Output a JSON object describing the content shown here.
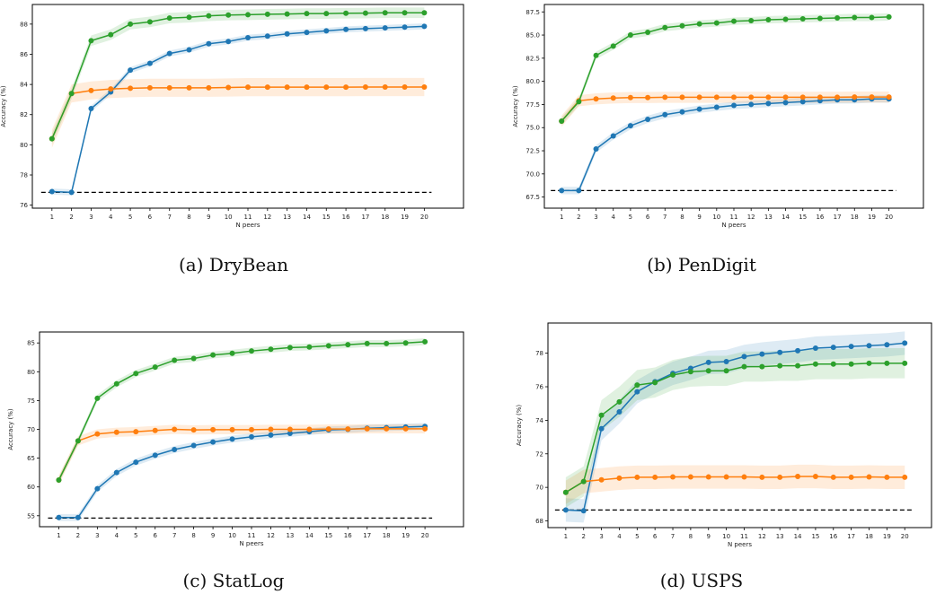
{
  "figure": {
    "captions": [
      "(a)  DryBean",
      "(b)  PenDigit",
      "(c)  StatLog",
      "(d)  USPS"
    ]
  },
  "chart_data": [
    {
      "type": "line",
      "dataset": "DryBean",
      "xlabel": "N peers",
      "ylabel": "Accuracy (%)",
      "xlim": [
        0.0,
        22.0
      ],
      "ylim": [
        75.8,
        89.3
      ],
      "x": [
        1,
        2,
        3,
        4,
        5,
        6,
        7,
        8,
        9,
        10,
        11,
        12,
        13,
        14,
        15,
        16,
        17,
        18,
        19,
        20
      ],
      "xticks": [
        "1",
        "2",
        "3",
        "4",
        "5",
        "6",
        "7",
        "8",
        "9",
        "10",
        "11",
        "12",
        "13",
        "14",
        "15",
        "16",
        "17",
        "18",
        "19",
        "20"
      ],
      "yticks": [
        "76",
        "78",
        "80",
        "82",
        "84",
        "86",
        "88"
      ],
      "ytick_values": [
        76,
        78,
        80,
        82,
        84,
        86,
        88
      ],
      "baseline": 76.85,
      "grid": false,
      "series": [
        {
          "color": "#1f77b4",
          "values": [
            76.9,
            76.85,
            82.4,
            83.5,
            84.95,
            85.4,
            86.05,
            86.3,
            86.7,
            86.85,
            87.1,
            87.2,
            87.35,
            87.45,
            87.55,
            87.65,
            87.7,
            87.75,
            87.8,
            87.85
          ],
          "band": 0.2
        },
        {
          "color": "#ff7f0e",
          "values": [
            80.4,
            83.4,
            83.6,
            83.7,
            83.75,
            83.78,
            83.78,
            83.78,
            83.78,
            83.8,
            83.82,
            83.82,
            83.82,
            83.82,
            83.82,
            83.82,
            83.83,
            83.83,
            83.83,
            83.83
          ],
          "band": 0.6
        },
        {
          "color": "#2ca02c",
          "values": [
            80.4,
            83.4,
            86.9,
            87.3,
            88.0,
            88.15,
            88.4,
            88.45,
            88.55,
            88.6,
            88.62,
            88.65,
            88.67,
            88.7,
            88.7,
            88.72,
            88.73,
            88.75,
            88.75,
            88.75
          ],
          "band": 0.35
        }
      ]
    },
    {
      "type": "line",
      "dataset": "PenDigit",
      "xlabel": "N peers",
      "ylabel": "Accuracy (%)",
      "xlim": [
        0.0,
        22.0
      ],
      "ylim": [
        66.3,
        88.3
      ],
      "x": [
        1,
        2,
        3,
        4,
        5,
        6,
        7,
        8,
        9,
        10,
        11,
        12,
        13,
        14,
        15,
        16,
        17,
        18,
        19,
        20
      ],
      "xticks": [
        "1",
        "2",
        "3",
        "4",
        "5",
        "6",
        "7",
        "8",
        "9",
        "10",
        "11",
        "12",
        "13",
        "14",
        "15",
        "16",
        "17",
        "18",
        "19",
        "20"
      ],
      "yticks": [
        "67.5",
        "70.0",
        "72.5",
        "75.0",
        "77.5",
        "80.0",
        "82.5",
        "85.0",
        "87.5"
      ],
      "ytick_values": [
        67.5,
        70.0,
        72.5,
        75.0,
        77.5,
        80.0,
        82.5,
        85.0,
        87.5
      ],
      "baseline": 68.2,
      "grid": false,
      "series": [
        {
          "color": "#1f77b4",
          "values": [
            68.2,
            68.2,
            72.7,
            74.1,
            75.2,
            75.9,
            76.4,
            76.7,
            77.0,
            77.2,
            77.4,
            77.5,
            77.6,
            77.7,
            77.8,
            77.9,
            78.0,
            78.0,
            78.1,
            78.1
          ],
          "band": 0.4
        },
        {
          "color": "#ff7f0e",
          "values": [
            75.7,
            77.9,
            78.1,
            78.2,
            78.25,
            78.25,
            78.28,
            78.28,
            78.28,
            78.28,
            78.28,
            78.28,
            78.28,
            78.28,
            78.28,
            78.28,
            78.28,
            78.3,
            78.3,
            78.3
          ],
          "band": 0.6
        },
        {
          "color": "#2ca02c",
          "values": [
            75.7,
            77.8,
            82.8,
            83.8,
            85.0,
            85.3,
            85.8,
            86.0,
            86.2,
            86.3,
            86.5,
            86.55,
            86.65,
            86.7,
            86.75,
            86.8,
            86.85,
            86.9,
            86.9,
            86.95
          ],
          "band": 0.4
        }
      ]
    },
    {
      "type": "line",
      "dataset": "StatLog",
      "xlabel": "N peers",
      "ylabel": "Accuracy (%)",
      "xlim": [
        0.0,
        22.0
      ],
      "ylim": [
        53.1,
        86.9
      ],
      "x": [
        1,
        2,
        3,
        4,
        5,
        6,
        7,
        8,
        9,
        10,
        11,
        12,
        13,
        14,
        15,
        16,
        17,
        18,
        19,
        20
      ],
      "xticks": [
        "1",
        "2",
        "3",
        "4",
        "5",
        "6",
        "7",
        "8",
        "9",
        "10",
        "11",
        "12",
        "13",
        "14",
        "15",
        "16",
        "17",
        "18",
        "19",
        "20"
      ],
      "yticks": [
        "55",
        "60",
        "65",
        "70",
        "75",
        "80",
        "85"
      ],
      "ytick_values": [
        55,
        60,
        65,
        70,
        75,
        80,
        85
      ],
      "baseline": 54.6,
      "grid": false,
      "series": [
        {
          "color": "#1f77b4",
          "values": [
            54.7,
            54.7,
            59.7,
            62.5,
            64.3,
            65.5,
            66.5,
            67.2,
            67.8,
            68.3,
            68.7,
            69.0,
            69.3,
            69.6,
            69.9,
            70.0,
            70.2,
            70.3,
            70.4,
            70.5
          ],
          "band": 0.6
        },
        {
          "color": "#ff7f0e",
          "values": [
            61.2,
            68.0,
            69.2,
            69.5,
            69.6,
            69.8,
            70.0,
            69.9,
            69.95,
            69.95,
            69.95,
            70.0,
            70.0,
            70.0,
            70.05,
            70.05,
            70.1,
            70.1,
            70.1,
            70.1
          ],
          "band": 0.8
        },
        {
          "color": "#2ca02c",
          "values": [
            61.2,
            68.0,
            75.4,
            77.9,
            79.7,
            80.8,
            82.0,
            82.3,
            82.9,
            83.2,
            83.6,
            83.9,
            84.2,
            84.3,
            84.5,
            84.7,
            84.9,
            84.9,
            85.0,
            85.2
          ],
          "band": 0.6
        }
      ]
    },
    {
      "type": "line",
      "dataset": "USPS",
      "xlabel": "N peers",
      "ylabel": "Accuracy (%)",
      "xlim": [
        0.0,
        21.5
      ],
      "ylim": [
        67.6,
        79.8
      ],
      "x": [
        1,
        2,
        3,
        4,
        5,
        6,
        7,
        8,
        9,
        10,
        11,
        12,
        13,
        14,
        15,
        16,
        17,
        18,
        19,
        20
      ],
      "xticks": [
        "1",
        "2",
        "3",
        "4",
        "5",
        "6",
        "7",
        "8",
        "9",
        "10",
        "11",
        "12",
        "13",
        "14",
        "15",
        "16",
        "17",
        "18",
        "19",
        "20"
      ],
      "yticks": [
        "68",
        "70",
        "72",
        "74",
        "76",
        "78"
      ],
      "ytick_values": [
        68,
        70,
        72,
        74,
        76,
        78
      ],
      "baseline": 68.65,
      "grid": false,
      "series": [
        {
          "color": "#1f77b4",
          "values": [
            68.65,
            68.6,
            73.5,
            74.5,
            75.7,
            76.3,
            76.8,
            77.1,
            77.45,
            77.5,
            77.8,
            77.95,
            78.05,
            78.15,
            78.3,
            78.35,
            78.4,
            78.45,
            78.5,
            78.6
          ],
          "band": 0.7
        },
        {
          "color": "#ff7f0e",
          "values": [
            69.7,
            70.35,
            70.45,
            70.55,
            70.6,
            70.6,
            70.62,
            70.62,
            70.62,
            70.62,
            70.62,
            70.6,
            70.6,
            70.65,
            70.65,
            70.6,
            70.6,
            70.62,
            70.6,
            70.6
          ],
          "band": 0.7
        },
        {
          "color": "#2ca02c",
          "values": [
            69.7,
            70.35,
            74.3,
            75.1,
            76.1,
            76.25,
            76.7,
            76.9,
            76.95,
            76.95,
            77.2,
            77.2,
            77.25,
            77.25,
            77.35,
            77.35,
            77.35,
            77.4,
            77.4,
            77.4
          ],
          "band": 0.9
        }
      ]
    }
  ]
}
